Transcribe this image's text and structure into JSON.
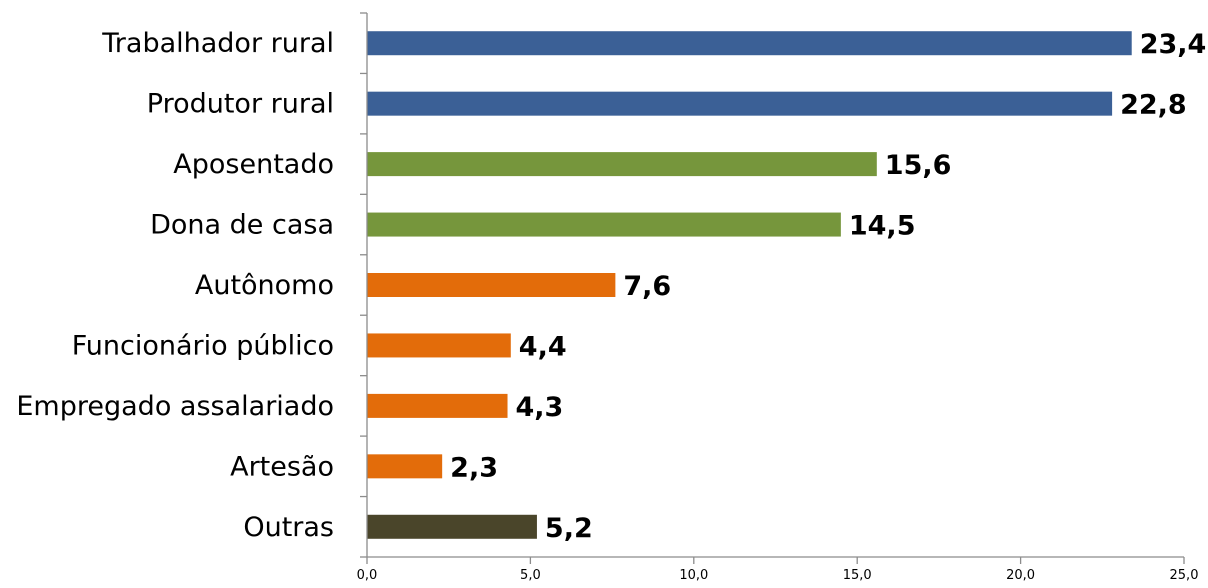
{
  "chart_data": {
    "type": "bar",
    "orientation": "horizontal",
    "title": "",
    "xlabel": "",
    "ylabel": "",
    "xlim": [
      0,
      25
    ],
    "grid": false,
    "legend": "none",
    "categories": [
      "Trabalhador rural",
      "Produtor rural",
      "Aposentado",
      "Dona de casa",
      "Autônomo",
      "Funcionário público",
      "Empregado assalariado",
      "Artesão",
      "Outras"
    ],
    "values": [
      23.4,
      22.8,
      15.6,
      14.5,
      7.6,
      4.4,
      4.3,
      2.3,
      5.2
    ],
    "value_labels": [
      "23,4",
      "22,8",
      "15,6",
      "14,5",
      "7,6",
      "4,4",
      "4,3",
      "2,3",
      "5,2"
    ],
    "bar_colors": [
      "#3b6096",
      "#3b6096",
      "#76963c",
      "#76963c",
      "#e36c0a",
      "#e36c0a",
      "#e36c0a",
      "#e36c0a",
      "#4a452a"
    ],
    "x_ticks": [
      0,
      5,
      10,
      15,
      20,
      25
    ],
    "x_tick_labels": [
      "0,0",
      "5,0",
      "10,0",
      "15,0",
      "20,0",
      "25,0"
    ]
  }
}
